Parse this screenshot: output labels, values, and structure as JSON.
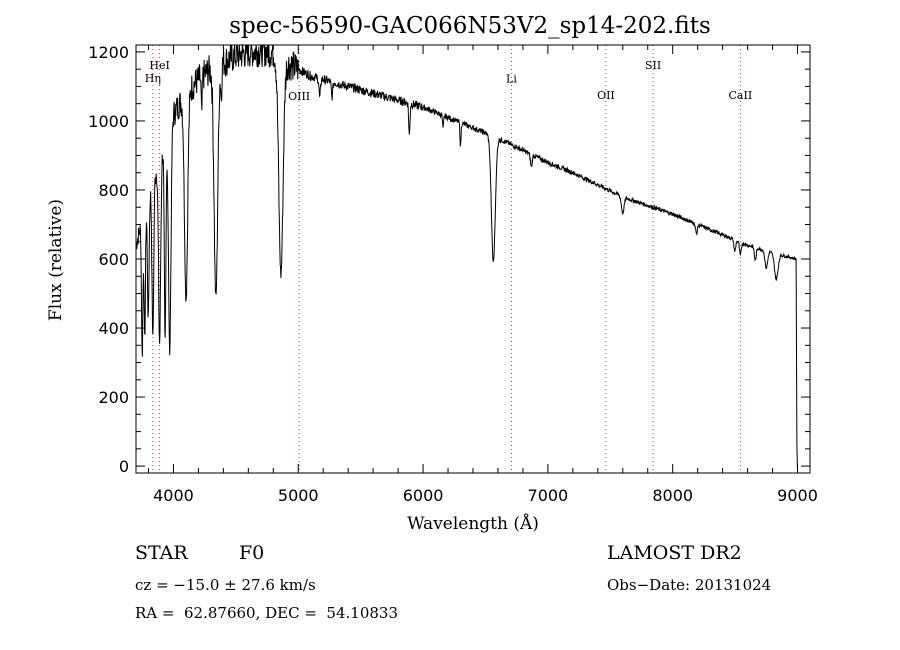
{
  "chart_data": {
    "type": "line",
    "title": "spec-56590-GAC066N53V2_sp14-202.fits",
    "xlabel": "Wavelength (Å)",
    "ylabel": "Flux (relative)",
    "xlim": [
      3700,
      9100
    ],
    "ylim": [
      -20,
      1220
    ],
    "xticks": [
      4000,
      5000,
      6000,
      7000,
      8000,
      9000
    ],
    "yticks": [
      0,
      200,
      400,
      600,
      800,
      1000,
      1200
    ],
    "grid": false,
    "line_color": "#000000",
    "marker_color": "#cc3333",
    "spectral_lines": [
      {
        "label": "HeI",
        "wavelength": 3889,
        "label_y": 1150
      },
      {
        "label": "Hη",
        "wavelength": 3835,
        "label_y": 1113
      },
      {
        "label": "OIII",
        "wavelength": 5007,
        "label_y": 1060
      },
      {
        "label": "Li",
        "wavelength": 6708,
        "label_y": 1112
      },
      {
        "label": "OII",
        "wavelength": 7465,
        "label_y": 1063
      },
      {
        "label": "SII",
        "wavelength": 7843,
        "label_y": 1150
      },
      {
        "label": "CaII",
        "wavelength": 8542,
        "label_y": 1063
      }
    ],
    "continuum": [
      [
        3700,
        640
      ],
      [
        3800,
        780
      ],
      [
        3900,
        900
      ],
      [
        4000,
        1020
      ],
      [
        4100,
        1080
      ],
      [
        4200,
        1120
      ],
      [
        4300,
        1150
      ],
      [
        4400,
        1170
      ],
      [
        4500,
        1190
      ],
      [
        4600,
        1200
      ],
      [
        4700,
        1205
      ],
      [
        4800,
        1200
      ],
      [
        4900,
        1170
      ],
      [
        5000,
        1150
      ],
      [
        5100,
        1130
      ],
      [
        5200,
        1120
      ],
      [
        5400,
        1100
      ],
      [
        5600,
        1080
      ],
      [
        5800,
        1060
      ],
      [
        6000,
        1040
      ],
      [
        6200,
        1010
      ],
      [
        6400,
        980
      ],
      [
        6600,
        950
      ],
      [
        6800,
        915
      ],
      [
        7000,
        880
      ],
      [
        7200,
        850
      ],
      [
        7400,
        815
      ],
      [
        7600,
        780
      ],
      [
        7800,
        755
      ],
      [
        8000,
        730
      ],
      [
        8200,
        700
      ],
      [
        8400,
        670
      ],
      [
        8600,
        640
      ],
      [
        8800,
        618
      ],
      [
        8990,
        600
      ]
    ],
    "absorption": [
      [
        3750,
        0.55,
        8
      ],
      [
        3770,
        0.5,
        8
      ],
      [
        3798,
        0.45,
        9
      ],
      [
        3835,
        0.55,
        10
      ],
      [
        3889,
        0.6,
        12
      ],
      [
        3933,
        0.62,
        9
      ],
      [
        3970,
        0.66,
        14
      ],
      [
        4101,
        0.55,
        18
      ],
      [
        4226,
        0.1,
        6
      ],
      [
        4340,
        0.58,
        20
      ],
      [
        4383,
        0.08,
        6
      ],
      [
        4861,
        0.53,
        24
      ],
      [
        5172,
        0.05,
        8
      ],
      [
        5270,
        0.04,
        8
      ],
      [
        5890,
        0.09,
        7
      ],
      [
        6160,
        0.04,
        6
      ],
      [
        6300,
        0.07,
        6
      ],
      [
        6563,
        0.38,
        22
      ],
      [
        6867,
        0.04,
        10
      ],
      [
        7600,
        0.06,
        15
      ],
      [
        8190,
        0.04,
        10
      ],
      [
        8498,
        0.05,
        10
      ],
      [
        8542,
        0.06,
        10
      ],
      [
        8662,
        0.06,
        10
      ],
      [
        8750,
        0.08,
        15
      ],
      [
        8830,
        0.12,
        20
      ]
    ]
  },
  "info": {
    "object_class": "STAR",
    "subclass": "F0",
    "survey": "LAMOST DR2",
    "redshift": "cz = −15.0 ± 27.6 km/s",
    "obs_date": "Obs−Date: 20131024",
    "coords": "RA =  62.87660, DEC =  54.10833"
  }
}
